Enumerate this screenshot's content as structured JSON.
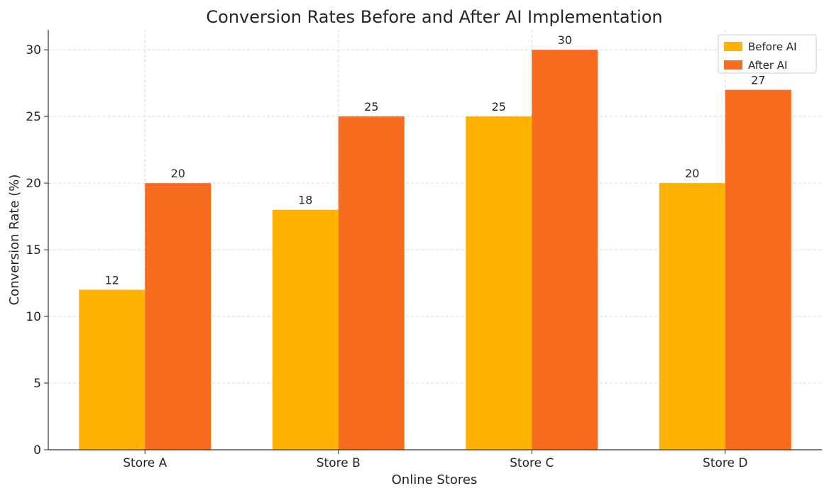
{
  "chart_data": {
    "type": "bar",
    "title": "Conversion Rates Before and After AI Implementation",
    "xlabel": "Online Stores",
    "ylabel": "Conversion Rate (%)",
    "categories": [
      "Store A",
      "Store B",
      "Store C",
      "Store D"
    ],
    "series": [
      {
        "name": "Before AI",
        "color": "#FFB300",
        "values": [
          12,
          18,
          25,
          20
        ]
      },
      {
        "name": "After AI",
        "color": "#F96B1F",
        "values": [
          20,
          25,
          30,
          27
        ]
      }
    ],
    "ylim": [
      0,
      31.5
    ],
    "yticks": [
      0,
      5,
      10,
      15,
      20,
      25,
      30
    ],
    "grid": true,
    "legend_position": "top-right",
    "data_labels": true
  }
}
